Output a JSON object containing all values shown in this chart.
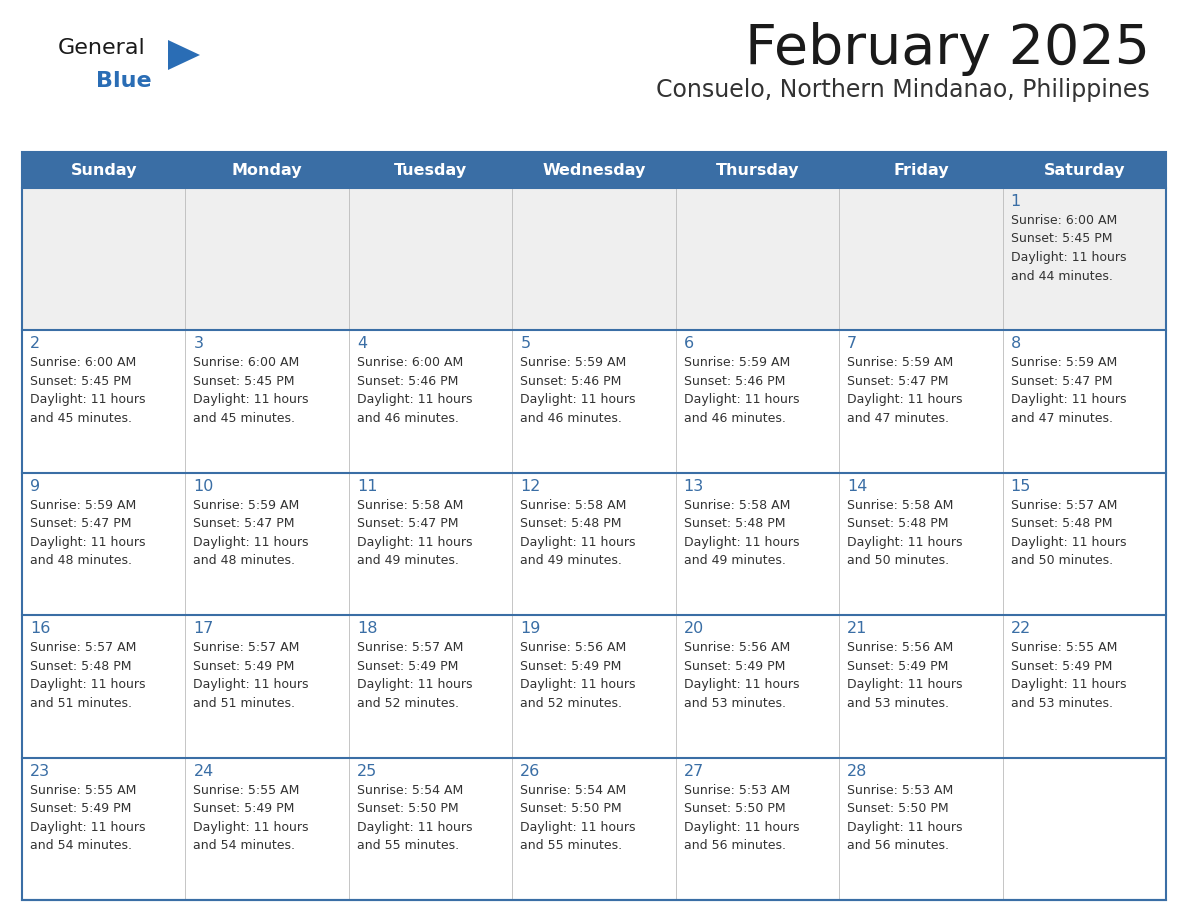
{
  "title": "February 2025",
  "subtitle": "Consuelo, Northern Mindanao, Philippines",
  "header_bg": "#3a6ea5",
  "header_text_color": "#ffffff",
  "cell_bg_week1": "#efefef",
  "cell_bg_other": "#ffffff",
  "day_headers": [
    "Sunday",
    "Monday",
    "Tuesday",
    "Wednesday",
    "Thursday",
    "Friday",
    "Saturday"
  ],
  "grid_color": "#3a6ea5",
  "title_color": "#1a1a1a",
  "subtitle_color": "#333333",
  "day_num_color": "#3a6ea5",
  "cell_text_color": "#333333",
  "logo_general_color": "#1a1a1a",
  "logo_blue_color": "#2a6db5",
  "weeks": [
    [
      null,
      null,
      null,
      null,
      null,
      null,
      {
        "day": 1,
        "sunrise": "6:00 AM",
        "sunset": "5:45 PM",
        "daylight": "11 hours and 44 minutes."
      }
    ],
    [
      {
        "day": 2,
        "sunrise": "6:00 AM",
        "sunset": "5:45 PM",
        "daylight": "11 hours and 45 minutes."
      },
      {
        "day": 3,
        "sunrise": "6:00 AM",
        "sunset": "5:45 PM",
        "daylight": "11 hours and 45 minutes."
      },
      {
        "day": 4,
        "sunrise": "6:00 AM",
        "sunset": "5:46 PM",
        "daylight": "11 hours and 46 minutes."
      },
      {
        "day": 5,
        "sunrise": "5:59 AM",
        "sunset": "5:46 PM",
        "daylight": "11 hours and 46 minutes."
      },
      {
        "day": 6,
        "sunrise": "5:59 AM",
        "sunset": "5:46 PM",
        "daylight": "11 hours and 46 minutes."
      },
      {
        "day": 7,
        "sunrise": "5:59 AM",
        "sunset": "5:47 PM",
        "daylight": "11 hours and 47 minutes."
      },
      {
        "day": 8,
        "sunrise": "5:59 AM",
        "sunset": "5:47 PM",
        "daylight": "11 hours and 47 minutes."
      }
    ],
    [
      {
        "day": 9,
        "sunrise": "5:59 AM",
        "sunset": "5:47 PM",
        "daylight": "11 hours and 48 minutes."
      },
      {
        "day": 10,
        "sunrise": "5:59 AM",
        "sunset": "5:47 PM",
        "daylight": "11 hours and 48 minutes."
      },
      {
        "day": 11,
        "sunrise": "5:58 AM",
        "sunset": "5:47 PM",
        "daylight": "11 hours and 49 minutes."
      },
      {
        "day": 12,
        "sunrise": "5:58 AM",
        "sunset": "5:48 PM",
        "daylight": "11 hours and 49 minutes."
      },
      {
        "day": 13,
        "sunrise": "5:58 AM",
        "sunset": "5:48 PM",
        "daylight": "11 hours and 49 minutes."
      },
      {
        "day": 14,
        "sunrise": "5:58 AM",
        "sunset": "5:48 PM",
        "daylight": "11 hours and 50 minutes."
      },
      {
        "day": 15,
        "sunrise": "5:57 AM",
        "sunset": "5:48 PM",
        "daylight": "11 hours and 50 minutes."
      }
    ],
    [
      {
        "day": 16,
        "sunrise": "5:57 AM",
        "sunset": "5:48 PM",
        "daylight": "11 hours and 51 minutes."
      },
      {
        "day": 17,
        "sunrise": "5:57 AM",
        "sunset": "5:49 PM",
        "daylight": "11 hours and 51 minutes."
      },
      {
        "day": 18,
        "sunrise": "5:57 AM",
        "sunset": "5:49 PM",
        "daylight": "11 hours and 52 minutes."
      },
      {
        "day": 19,
        "sunrise": "5:56 AM",
        "sunset": "5:49 PM",
        "daylight": "11 hours and 52 minutes."
      },
      {
        "day": 20,
        "sunrise": "5:56 AM",
        "sunset": "5:49 PM",
        "daylight": "11 hours and 53 minutes."
      },
      {
        "day": 21,
        "sunrise": "5:56 AM",
        "sunset": "5:49 PM",
        "daylight": "11 hours and 53 minutes."
      },
      {
        "day": 22,
        "sunrise": "5:55 AM",
        "sunset": "5:49 PM",
        "daylight": "11 hours and 53 minutes."
      }
    ],
    [
      {
        "day": 23,
        "sunrise": "5:55 AM",
        "sunset": "5:49 PM",
        "daylight": "11 hours and 54 minutes."
      },
      {
        "day": 24,
        "sunrise": "5:55 AM",
        "sunset": "5:49 PM",
        "daylight": "11 hours and 54 minutes."
      },
      {
        "day": 25,
        "sunrise": "5:54 AM",
        "sunset": "5:50 PM",
        "daylight": "11 hours and 55 minutes."
      },
      {
        "day": 26,
        "sunrise": "5:54 AM",
        "sunset": "5:50 PM",
        "daylight": "11 hours and 55 minutes."
      },
      {
        "day": 27,
        "sunrise": "5:53 AM",
        "sunset": "5:50 PM",
        "daylight": "11 hours and 56 minutes."
      },
      {
        "day": 28,
        "sunrise": "5:53 AM",
        "sunset": "5:50 PM",
        "daylight": "11 hours and 56 minutes."
      },
      null
    ]
  ]
}
